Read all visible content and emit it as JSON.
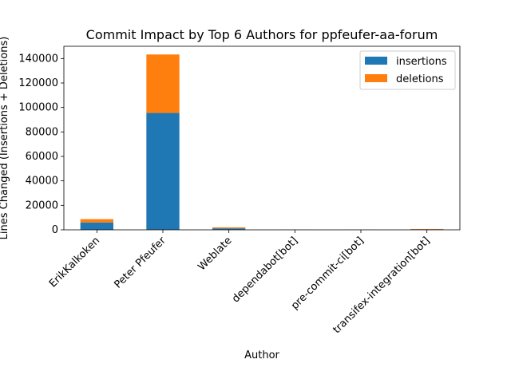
{
  "chart_data": {
    "type": "bar",
    "stacked": true,
    "title": "Commit Impact by Top 6 Authors for ppfeufer-aa-forum",
    "xlabel": "Author",
    "ylabel": "Lines Changed (Insertions + Deletions)",
    "categories": [
      "ErikKalkoken",
      "Peter Pfeufer",
      "Weblate",
      "dependabot[bot]",
      "pre-commit-ci[bot]",
      "transifex-integration[bot]"
    ],
    "series": [
      {
        "name": "insertions",
        "color": "#1f77b4",
        "values": [
          6000,
          95500,
          1200,
          60,
          50,
          400
        ]
      },
      {
        "name": "deletions",
        "color": "#ff7f0e",
        "values": [
          2700,
          47800,
          800,
          40,
          30,
          300
        ]
      }
    ],
    "ylim": [
      0,
      150000
    ],
    "yticks": [
      0,
      20000,
      40000,
      60000,
      80000,
      100000,
      120000,
      140000
    ],
    "legend_position": "top-right",
    "grid": false
  }
}
